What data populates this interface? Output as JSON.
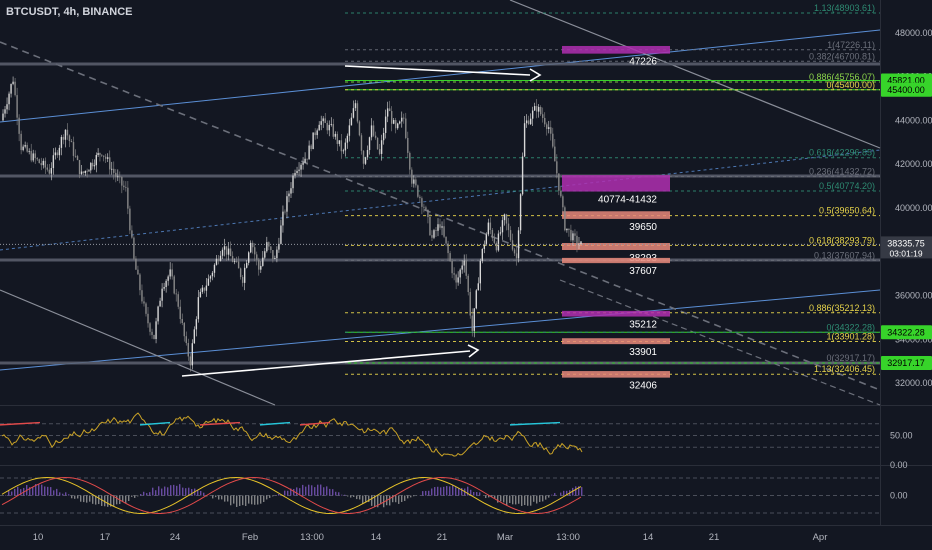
{
  "title": "BTCUSDT, 4h, BINANCE",
  "colors": {
    "background": "#131722",
    "up_candle": "#c8c8c8",
    "fib_teal": "#2e8b72",
    "fib_yellow": "#e6d34a",
    "fib_gray": "#6b6f7a",
    "fib_lime": "#8bd44a",
    "zone_magenta": "#b02fb0",
    "zone_salmon": "#e8887a",
    "channel_blue": "#5b8fd6",
    "horizontal_gray": "#8a8fa3",
    "green_badge": "#37d42a"
  },
  "chart_data": [
    {
      "type": "line",
      "title": "BTCUSDT, 4h, BINANCE",
      "style": "candlestick",
      "ylim": [
        31000,
        49500
      ],
      "price_axis_ticks": [
        "48000.00",
        "46000.00",
        "44000.00",
        "42000.00",
        "40000.00",
        "36000.00",
        "34000.00",
        "32000.00"
      ],
      "time_axis_ticks": [
        "10",
        "17",
        "24",
        "Feb",
        "13:00",
        "14",
        "21",
        "Mar",
        "13:00",
        "14",
        "21",
        "Apr"
      ],
      "price_path": [
        [
          "t",
          0,
          44000
        ],
        [
          "t",
          3,
          45900
        ],
        [
          "t",
          5,
          42800
        ],
        [
          "t",
          8,
          42300
        ],
        [
          "t",
          12,
          41700
        ],
        [
          "t",
          16,
          43600
        ],
        [
          "t",
          20,
          41500
        ],
        [
          "t",
          25,
          42600
        ],
        [
          "t",
          29,
          41300
        ],
        [
          "t",
          31,
          40800
        ],
        [
          "t",
          33,
          37600
        ],
        [
          "t",
          36,
          35000
        ],
        [
          "t",
          38,
          34100
        ],
        [
          "t",
          40,
          36500
        ],
        [
          "t",
          42,
          37000
        ],
        [
          "t",
          44,
          35600
        ],
        [
          "t",
          46,
          33600
        ],
        [
          "t",
          47,
          33000
        ],
        [
          "t",
          49,
          35800
        ],
        [
          "t",
          52,
          36900
        ],
        [
          "t",
          55,
          38300
        ],
        [
          "t",
          58,
          37500
        ],
        [
          "t",
          60,
          36800
        ],
        [
          "t",
          62,
          38600
        ],
        [
          "t",
          64,
          37200
        ],
        [
          "t",
          66,
          38300
        ],
        [
          "t",
          68,
          37600
        ],
        [
          "t",
          70,
          39600
        ],
        [
          "t",
          73,
          41800
        ],
        [
          "t",
          76,
          42400
        ],
        [
          "t",
          79,
          44000
        ],
        [
          "t",
          82,
          43600
        ],
        [
          "t",
          85,
          42500
        ],
        [
          "t",
          88,
          44800
        ],
        [
          "t",
          90,
          42100
        ],
        [
          "t",
          92,
          43600
        ],
        [
          "t",
          94,
          42400
        ],
        [
          "t",
          96,
          44600
        ],
        [
          "t",
          98,
          43500
        ],
        [
          "t",
          100,
          44100
        ],
        [
          "t",
          102,
          41300
        ],
        [
          "t",
          105,
          40100
        ],
        [
          "t",
          107,
          38600
        ],
        [
          "t",
          109,
          39300
        ],
        [
          "t",
          111,
          37900
        ],
        [
          "t",
          113,
          36500
        ],
        [
          "t",
          115,
          37800
        ],
        [
          "t",
          117,
          34400
        ],
        [
          "t",
          119,
          37600
        ],
        [
          "t",
          121,
          39200
        ],
        [
          "t",
          123,
          38300
        ],
        [
          "t",
          125,
          39500
        ],
        [
          "t",
          128,
          37700
        ],
        [
          "t",
          130,
          43800
        ],
        [
          "t",
          133,
          44600
        ],
        [
          "t",
          136,
          43700
        ],
        [
          "t",
          138,
          41600
        ],
        [
          "t",
          140,
          39200
        ],
        [
          "t",
          142,
          38600
        ],
        [
          "t",
          144,
          38300
        ]
      ],
      "fib_levels": [
        {
          "label": "1.13(48903.61)",
          "price": 48903.61,
          "color_key": "fib_teal"
        },
        {
          "label": "1(47226.11)",
          "price": 47226.11,
          "color_key": "fib_gray"
        },
        {
          "label": "0.382(46700.81)",
          "price": 46700.81,
          "color_key": "fib_gray"
        },
        {
          "label": "0.886(45756.07)",
          "price": 45756.07,
          "color_key": "fib_lime"
        },
        {
          "label": "0(45400.00)",
          "price": 45400.0,
          "color_key": "fib_yellow"
        },
        {
          "label": "0.618(42296.85)",
          "price": 42296.85,
          "color_key": "fib_teal"
        },
        {
          "label": "0.236(41432.72)",
          "price": 41432.72,
          "color_key": "fib_gray"
        },
        {
          "label": "0.5(40774.20)",
          "price": 40774.2,
          "color_key": "fib_teal"
        },
        {
          "label": "0.5(39650.64)",
          "price": 39650.64,
          "color_key": "fib_yellow"
        },
        {
          "label": "0.618(38293.79)",
          "price": 38293.79,
          "color_key": "fib_yellow"
        },
        {
          "label": "0.13(37607.94)",
          "price": 37607.94,
          "color_key": "fib_gray"
        },
        {
          "label": "0.886(35212.13)",
          "price": 35212.13,
          "color_key": "fib_yellow"
        },
        {
          "label": "0(34322.28)",
          "price": 34322.28,
          "color_key": "fib_teal"
        },
        {
          "label": "1(33901.28)",
          "price": 33901.28,
          "color_key": "fib_yellow"
        },
        {
          "label": "0(32917.17)",
          "price": 32917.17,
          "color_key": "fib_gray"
        },
        {
          "label": "1.13(32406.45)",
          "price": 32406.45,
          "color_key": "fib_yellow"
        }
      ],
      "zones": [
        {
          "label": "47226",
          "price_top": 47400,
          "price_bottom": 47050,
          "color_key": "zone_magenta"
        },
        {
          "label": "40774-41432",
          "price_top": 41500,
          "price_bottom": 40750,
          "color_key": "zone_magenta"
        },
        {
          "label": "39650",
          "price_top": 39850,
          "price_bottom": 39500,
          "color_key": "zone_salmon"
        },
        {
          "label": "38293",
          "price_top": 38400,
          "price_bottom": 38080,
          "color_key": "zone_salmon"
        },
        {
          "label": "37607",
          "price_top": 37720,
          "price_bottom": 37480,
          "color_key": "zone_salmon"
        },
        {
          "label": "35212",
          "price_top": 35300,
          "price_bottom": 35040,
          "color_key": "zone_magenta"
        },
        {
          "label": "33901",
          "price_top": 34050,
          "price_bottom": 33780,
          "color_key": "zone_salmon"
        },
        {
          "label": "32406",
          "price_top": 32550,
          "price_bottom": 32250,
          "color_key": "zone_salmon"
        }
      ],
      "price_badges": [
        {
          "label": "45821.00",
          "price": 45821.0,
          "style": "green"
        },
        {
          "label": "45400.00",
          "price": 45400.0,
          "style": "green"
        },
        {
          "label": "34322.28",
          "price": 34322.28,
          "style": "green"
        },
        {
          "label": "32917.17",
          "price": 32917.17,
          "style": "green"
        }
      ],
      "last_price": {
        "label": "38335.75",
        "countdown": "03:01:19",
        "price": 38335.75
      }
    },
    {
      "type": "line",
      "title": "",
      "ylim": [
        0,
        100
      ],
      "tick_labels": [
        "50.00",
        "0.00"
      ],
      "levels": [
        70,
        50,
        30
      ]
    },
    {
      "type": "line",
      "title": "",
      "tick_labels": [
        "0.00"
      ]
    }
  ]
}
